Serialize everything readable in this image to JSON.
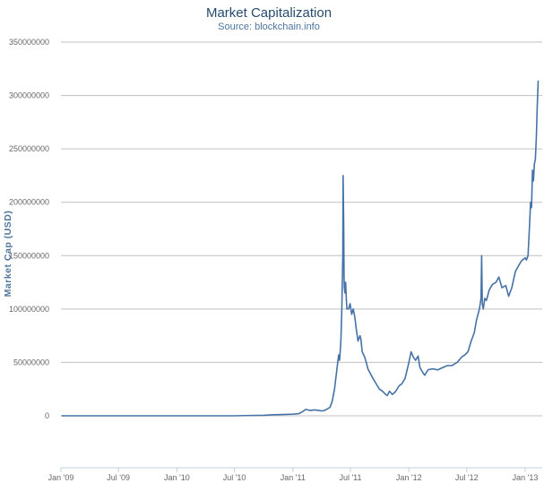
{
  "chart_data": {
    "type": "line",
    "title": "Market Capitalization",
    "subtitle": "Source: blockchain.info",
    "xlabel": "",
    "ylabel": "Market Cap (USD)",
    "ylim": [
      0,
      350000000
    ],
    "yticks": [
      0,
      50000000,
      100000000,
      150000000,
      200000000,
      250000000,
      300000000,
      350000000
    ],
    "xtick_labels": [
      "Jan '09",
      "Jul '09",
      "Jan '10",
      "Jul '10",
      "Jan '11",
      "Jul '11",
      "Jan '12",
      "Jul '12",
      "Jan '13"
    ],
    "xtick_dates": [
      "2009-01",
      "2009-07",
      "2010-01",
      "2010-07",
      "2011-01",
      "2011-07",
      "2012-01",
      "2012-07",
      "2013-01"
    ],
    "grid": true,
    "line_color": "#4572a7",
    "series": [
      {
        "x": [
          "2009-01-03",
          "2009-07-01",
          "2010-01-01",
          "2010-07-01",
          "2010-08-01",
          "2010-10-01",
          "2010-11-01",
          "2010-12-01",
          "2011-01-01",
          "2011-01-20",
          "2011-02-01",
          "2011-02-10",
          "2011-02-25",
          "2011-03-10",
          "2011-03-25",
          "2011-04-01",
          "2011-04-10",
          "2011-04-20",
          "2011-04-28",
          "2011-05-05",
          "2011-05-12",
          "2011-05-20",
          "2011-05-25",
          "2011-05-28",
          "2011-06-01",
          "2011-06-04",
          "2011-06-07",
          "2011-06-08",
          "2011-06-10",
          "2011-06-11",
          "2011-06-12",
          "2011-06-14",
          "2011-06-16",
          "2011-06-18",
          "2011-06-20",
          "2011-06-25",
          "2011-06-30",
          "2011-07-05",
          "2011-07-10",
          "2011-07-15",
          "2011-07-20",
          "2011-07-25",
          "2011-07-31",
          "2011-08-03",
          "2011-08-07",
          "2011-08-10",
          "2011-08-15",
          "2011-08-20",
          "2011-08-25",
          "2011-09-01",
          "2011-09-10",
          "2011-09-20",
          "2011-09-30",
          "2011-10-10",
          "2011-10-20",
          "2011-10-25",
          "2011-11-01",
          "2011-11-10",
          "2011-11-18",
          "2011-11-25",
          "2011-12-01",
          "2011-12-10",
          "2011-12-20",
          "2012-01-01",
          "2012-01-08",
          "2012-01-15",
          "2012-01-22",
          "2012-01-30",
          "2012-02-05",
          "2012-02-15",
          "2012-02-20",
          "2012-03-01",
          "2012-03-15",
          "2012-04-01",
          "2012-04-15",
          "2012-05-01",
          "2012-05-15",
          "2012-06-01",
          "2012-06-15",
          "2012-06-25",
          "2012-07-05",
          "2012-07-15",
          "2012-07-25",
          "2012-08-01",
          "2012-08-10",
          "2012-08-15",
          "2012-08-17",
          "2012-08-19",
          "2012-08-22",
          "2012-08-27",
          "2012-09-01",
          "2012-09-10",
          "2012-09-20",
          "2012-10-01",
          "2012-10-10",
          "2012-10-20",
          "2012-11-01",
          "2012-11-10",
          "2012-11-20",
          "2012-12-01",
          "2012-12-10",
          "2012-12-20",
          "2013-01-01",
          "2013-01-05",
          "2013-01-10",
          "2013-01-15",
          "2013-01-18",
          "2013-01-21",
          "2013-01-24",
          "2013-01-27",
          "2013-01-30",
          "2013-02-02",
          "2013-02-05",
          "2013-02-08",
          "2013-02-11"
        ],
        "values": [
          0,
          0,
          0,
          0,
          200000,
          500000,
          1000000,
          1200000,
          1500000,
          2000000,
          4000000,
          6000000,
          5000000,
          5500000,
          5000000,
          4500000,
          5000000,
          6500000,
          8000000,
          14000000,
          25000000,
          45000000,
          57000000,
          52000000,
          70000000,
          100000000,
          150000000,
          225000000,
          175000000,
          130000000,
          120000000,
          115000000,
          125000000,
          110000000,
          100000000,
          100000000,
          105000000,
          95000000,
          100000000,
          92000000,
          80000000,
          70000000,
          75000000,
          72000000,
          60000000,
          58000000,
          55000000,
          50000000,
          44000000,
          40000000,
          35000000,
          30000000,
          25000000,
          23000000,
          20000000,
          19000000,
          23000000,
          20000000,
          22000000,
          25000000,
          28000000,
          30000000,
          35000000,
          50000000,
          60000000,
          55000000,
          52000000,
          56000000,
          45000000,
          40000000,
          38000000,
          43000000,
          44000000,
          43000000,
          45000000,
          47000000,
          47000000,
          50000000,
          55000000,
          57000000,
          60000000,
          70000000,
          78000000,
          90000000,
          100000000,
          110000000,
          150000000,
          105000000,
          100000000,
          110000000,
          108000000,
          118000000,
          123000000,
          125000000,
          130000000,
          120000000,
          122000000,
          112000000,
          120000000,
          135000000,
          140000000,
          145000000,
          148000000,
          146000000,
          150000000,
          180000000,
          200000000,
          195000000,
          230000000,
          220000000,
          236000000,
          240000000,
          260000000,
          290000000,
          314000000
        ]
      }
    ]
  }
}
